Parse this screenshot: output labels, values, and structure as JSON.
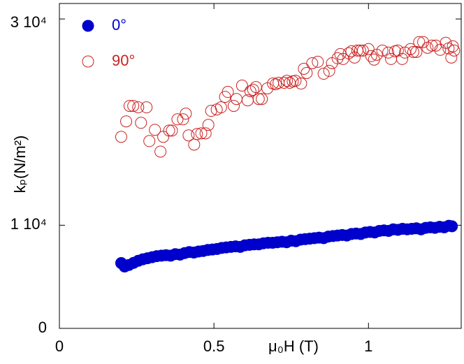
{
  "chart_data": {
    "type": "scatter",
    "xlabel": "μ₀H (T)",
    "ylabel": "kₚ(N/m²)",
    "xlim": [
      0,
      1.3
    ],
    "xticks": [
      0,
      0.5,
      1
    ],
    "ylim": [
      0,
      31500
    ],
    "yticks": [
      0,
      {
        "value": 10000,
        "label": "1 10⁴"
      },
      {
        "value": 30000,
        "label": "3 10⁴"
      }
    ],
    "legend": "top-left",
    "series": [
      {
        "name": "0°",
        "color": "#0000cc",
        "marker": "filled",
        "x": [
          0.2,
          0.211,
          0.225,
          0.24,
          0.255,
          0.27,
          0.285,
          0.3,
          0.315,
          0.33,
          0.345,
          0.36,
          0.375,
          0.39,
          0.405,
          0.42,
          0.435,
          0.45,
          0.465,
          0.48,
          0.495,
          0.51,
          0.525,
          0.54,
          0.555,
          0.57,
          0.585,
          0.6,
          0.615,
          0.63,
          0.645,
          0.66,
          0.675,
          0.69,
          0.705,
          0.72,
          0.735,
          0.75,
          0.765,
          0.78,
          0.795,
          0.81,
          0.825,
          0.84,
          0.855,
          0.87,
          0.885,
          0.9,
          0.915,
          0.93,
          0.945,
          0.96,
          0.975,
          0.99,
          1.005,
          1.02,
          1.035,
          1.05,
          1.065,
          1.08,
          1.095,
          1.11,
          1.125,
          1.14,
          1.155,
          1.17,
          1.185,
          1.2,
          1.215,
          1.23,
          1.245,
          1.26,
          1.27
        ],
        "values": [
          6330,
          6000,
          6150,
          6350,
          6550,
          6700,
          6800,
          6900,
          7000,
          7050,
          7100,
          7050,
          7200,
          7150,
          7300,
          7400,
          7350,
          7450,
          7500,
          7600,
          7650,
          7700,
          7800,
          7850,
          7900,
          7950,
          7900,
          8050,
          8100,
          8150,
          8150,
          8250,
          8300,
          8300,
          8350,
          8400,
          8350,
          8500,
          8450,
          8600,
          8650,
          8700,
          8750,
          8800,
          8750,
          8900,
          8950,
          9000,
          9050,
          9000,
          9150,
          9200,
          9150,
          9300,
          9350,
          9300,
          9450,
          9500,
          9450,
          9600,
          9550,
          9650,
          9600,
          9650,
          9700,
          9600,
          9750,
          9800,
          9750,
          9850,
          9800,
          9950,
          9900
        ]
      },
      {
        "name": "90°",
        "color": "#cc2222",
        "marker": "open",
        "x": [
          0.2,
          0.216,
          0.227,
          0.239,
          0.255,
          0.264,
          0.282,
          0.291,
          0.309,
          0.327,
          0.336,
          0.355,
          0.364,
          0.382,
          0.4,
          0.409,
          0.418,
          0.436,
          0.445,
          0.459,
          0.473,
          0.482,
          0.491,
          0.509,
          0.523,
          0.536,
          0.545,
          0.564,
          0.573,
          0.591,
          0.609,
          0.618,
          0.627,
          0.636,
          0.645,
          0.655,
          0.673,
          0.691,
          0.7,
          0.709,
          0.727,
          0.736,
          0.745,
          0.755,
          0.764,
          0.782,
          0.791,
          0.8,
          0.818,
          0.836,
          0.855,
          0.873,
          0.882,
          0.9,
          0.909,
          0.918,
          0.936,
          0.945,
          0.955,
          0.964,
          0.973,
          0.982,
          1.0,
          1.009,
          1.018,
          1.027,
          1.045,
          1.064,
          1.073,
          1.086,
          1.095,
          1.109,
          1.118,
          1.136,
          1.145,
          1.155,
          1.164,
          1.177,
          1.191,
          1.205,
          1.218,
          1.232,
          1.25,
          1.259,
          1.268,
          1.273,
          1.277
        ],
        "values": [
          18570,
          20070,
          21570,
          21570,
          21430,
          19930,
          21430,
          18160,
          19250,
          17140,
          18570,
          19180,
          19180,
          20270,
          20270,
          20820,
          18710,
          17820,
          18840,
          18910,
          18910,
          19730,
          21090,
          21220,
          21430,
          22450,
          22930,
          21570,
          22240,
          23540,
          22110,
          22990,
          23130,
          23400,
          22240,
          22240,
          23270,
          23740,
          23670,
          23810,
          23810,
          24010,
          23810,
          23950,
          24010,
          23740,
          25170,
          24760,
          25710,
          25850,
          24690,
          24970,
          25710,
          26190,
          26600,
          26120,
          26670,
          26870,
          26260,
          26940,
          26940,
          26940,
          27080,
          26400,
          26060,
          26530,
          26940,
          26740,
          26120,
          26870,
          26940,
          26120,
          26740,
          27080,
          26800,
          26800,
          27760,
          27760,
          27210,
          27420,
          27420,
          27010,
          27690,
          27140,
          26260,
          27350,
          26940
        ]
      }
    ]
  }
}
